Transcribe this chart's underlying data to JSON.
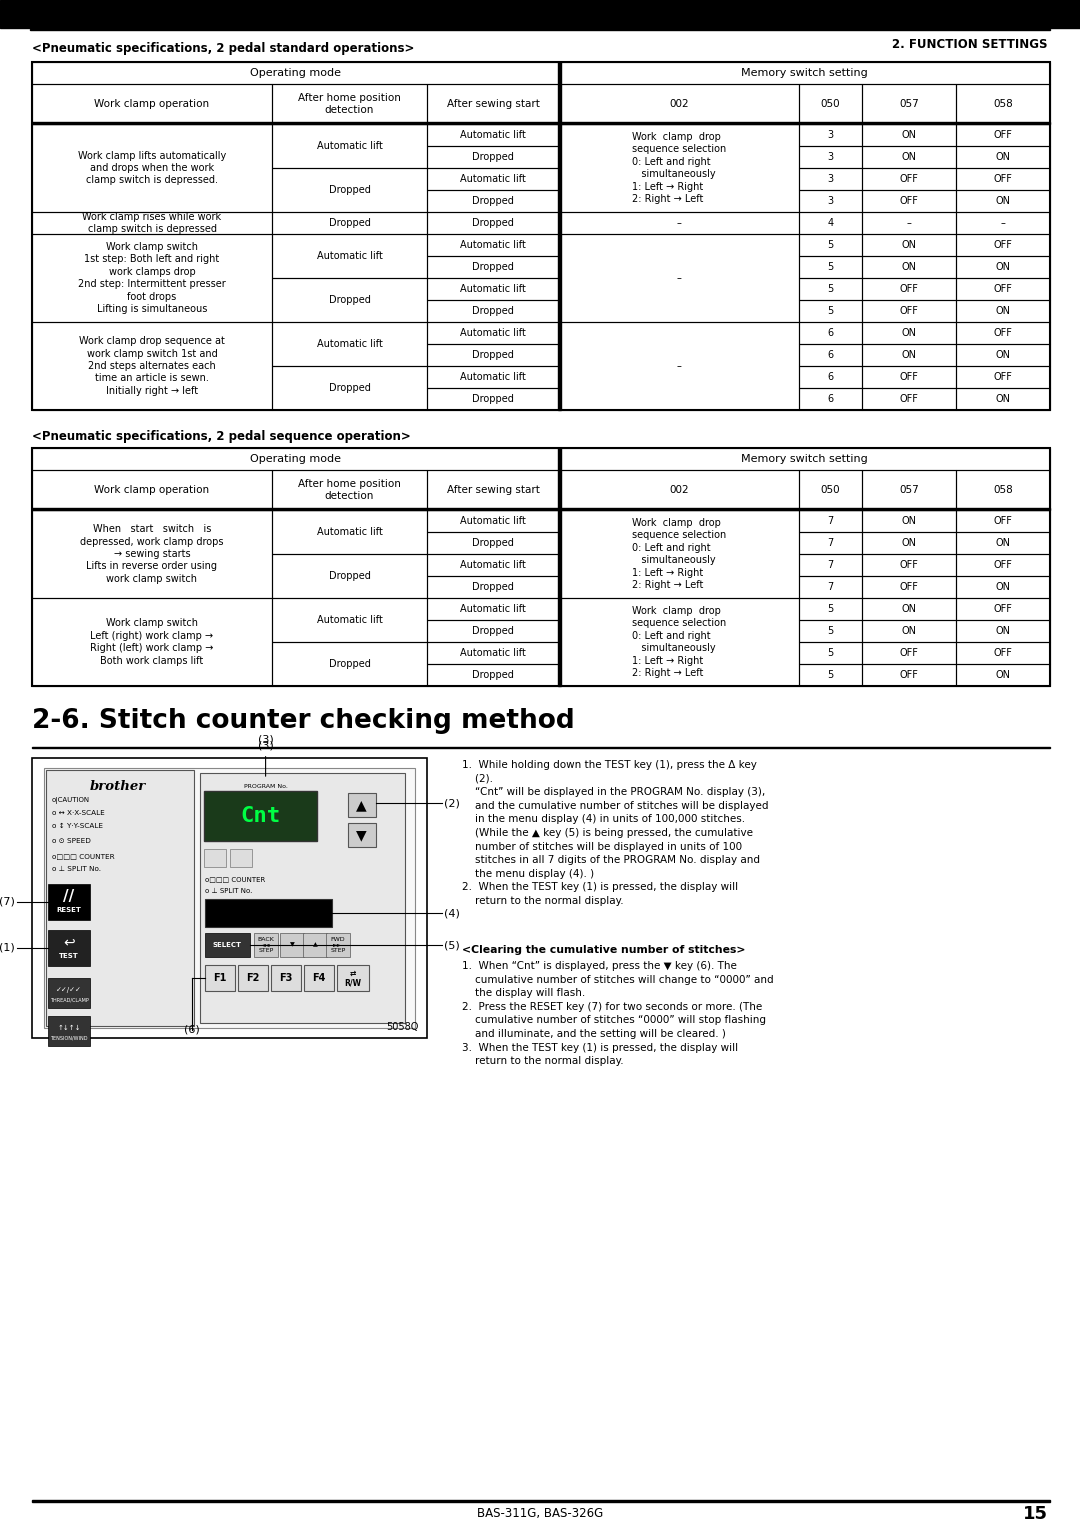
{
  "page_header": "2. FUNCTION SETTINGS",
  "background_color": "#ffffff",
  "table1_title": "<Pneumatic specifications, 2 pedal standard operations>",
  "table2_title": "<Pneumatic specifications, 2 pedal sequence operation>",
  "section_title": "2-6. Stitch counter checking method",
  "footer_model": "BAS-311G, BAS-326G",
  "footer_page": "15",
  "image_label": "5058Q",
  "col_labels": [
    "Work clamp operation",
    "After home position\ndetection",
    "After sewing start",
    "002",
    "050",
    "057",
    "058"
  ],
  "group_label_op": "Operating mode",
  "group_label_mem": "Memory switch setting",
  "instr1": "1.  While holding down the TEST key (1), press the Δ key\n    (2).\n    “Cnt” will be displayed in the PROGRAM No. display (3),\n    and the cumulative number of stitches will be displayed\n    in the menu display (4) in units of 100,000 stitches.\n    (While the ▲ key (5) is being pressed, the cumulative\n    number of stitches will be displayed in units of 100\n    stitches in all 7 digits of the PROGRAM No. display and\n    the menu display (4). )\n2.  When the TEST key (1) is pressed, the display will\n    return to the normal display.",
  "clear_header": "<Clearing the cumulative number of stitches>",
  "instr2": "1.  When “Cnt” is displayed, press the ▼ key (6). The\n    cumulative number of stitches will change to “0000” and\n    the display will flash.\n2.  Press the RESET key (7) for two seconds or more. (The\n    cumulative number of stitches “0000” will stop flashing\n    and illuminate, and the setting will be cleared. )\n3.  When the TEST key (1) is pressed, the display will\n    return to the normal display."
}
